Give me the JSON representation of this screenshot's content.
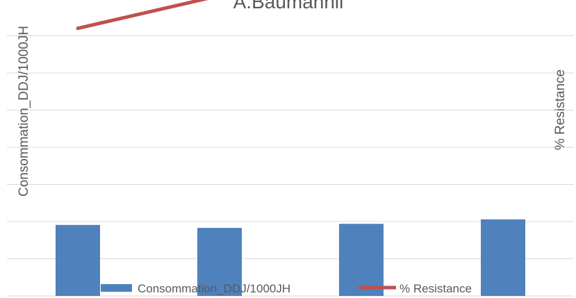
{
  "chart_data": {
    "type": "bar",
    "title": "A.Baumannii",
    "categories": [
      null,
      null,
      null,
      null
    ],
    "series": [
      {
        "name": "Consommation_DDJ/1000JH",
        "color": "#4f81bd",
        "values": [
          1.91,
          1.83,
          1.94,
          2.06
        ]
      },
      {
        "name": "% Resistance",
        "color": "#c0504d",
        "axis": "y2",
        "type": "line",
        "values": [
          90,
          101,
          null,
          null
        ]
      }
    ],
    "y_label": "Consommation_DDJ/1000JH",
    "y2_label": "% Resistance",
    "ylim": [
      0,
      8
    ],
    "yticks": [
      0,
      1,
      2,
      3,
      4,
      5,
      6,
      7,
      8
    ],
    "y2lim": [
      0,
      100
    ],
    "grid": true,
    "legend": "bottom"
  }
}
